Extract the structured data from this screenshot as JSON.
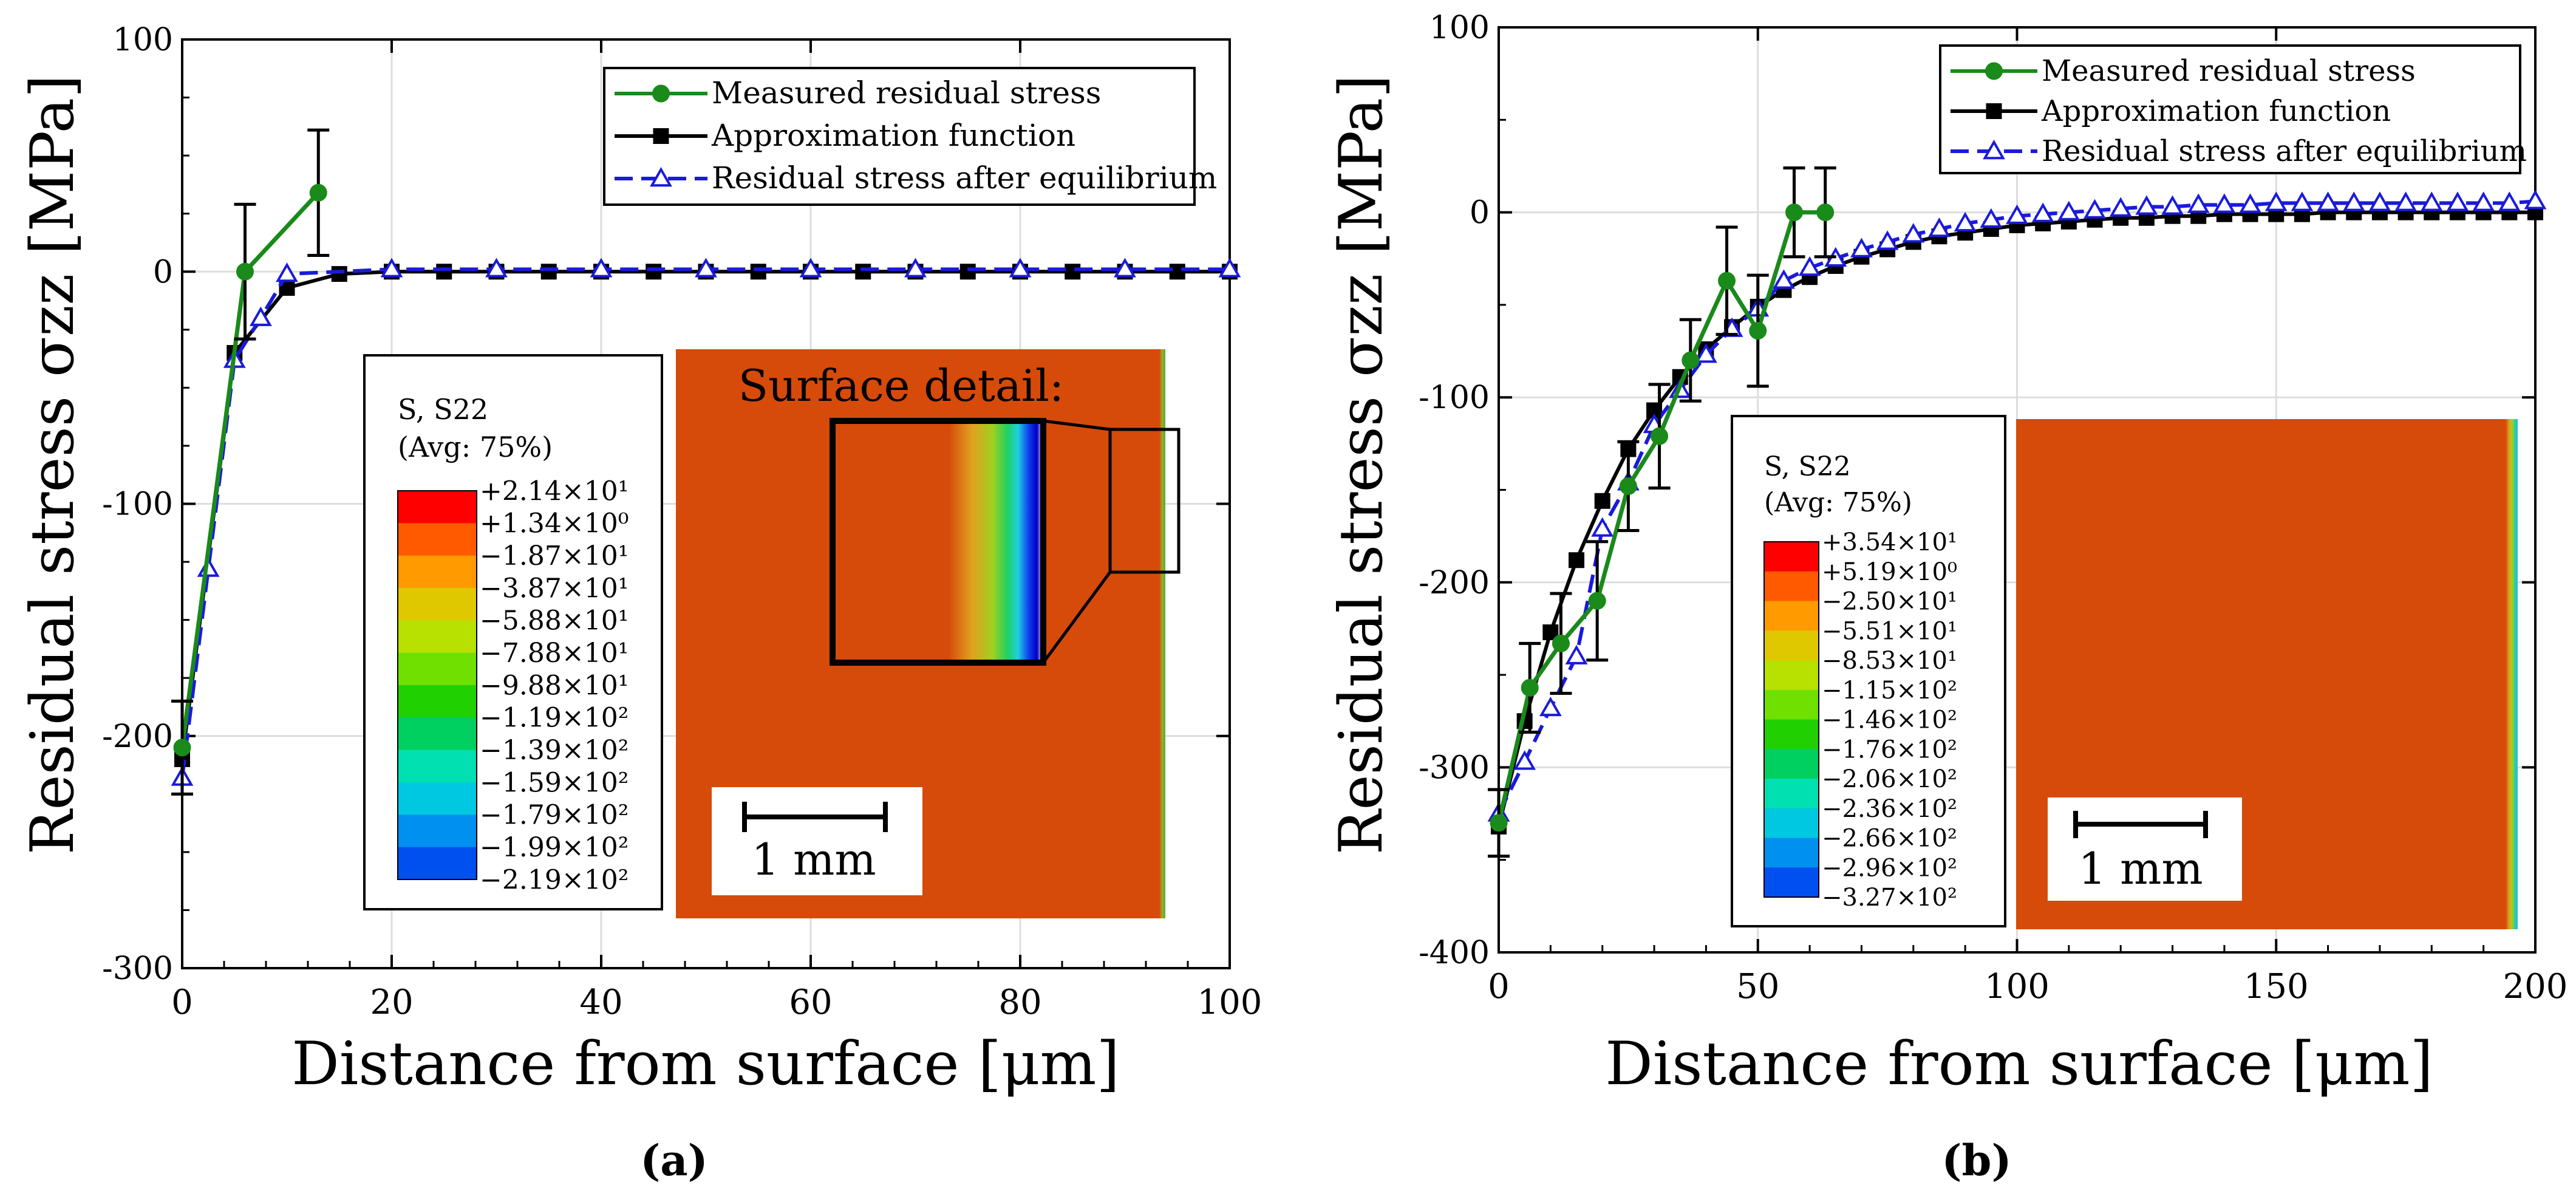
{
  "colors": {
    "measured": "#1a8a1a",
    "approximation": "#000000",
    "equilibrium": "#1a1adc",
    "contour_bg": "#d64a0a",
    "grid": "#dddddd"
  },
  "chart_data": [
    {
      "panel": "a",
      "caption": "(a)",
      "type": "line",
      "xlabel": "Distance from surface [μm]",
      "ylabel": "Residual stress σzz [MPa]",
      "xlim": [
        0,
        100
      ],
      "ylim": [
        -300,
        100
      ],
      "xticks": [
        "0",
        "20",
        "40",
        "60",
        "80",
        "100"
      ],
      "yticks": [
        "100",
        "0",
        "-100",
        "-200",
        "-300"
      ],
      "legend_position": "top-right",
      "series": [
        {
          "name": "Measured residual stress",
          "marker": "circle",
          "x": [
            0,
            6,
            13
          ],
          "y": [
            -205,
            0,
            34
          ],
          "error": [
            20,
            29,
            27
          ]
        },
        {
          "name": "Approximation function",
          "marker": "square",
          "x": [
            0,
            5,
            10,
            15,
            20,
            25,
            30,
            35,
            40,
            45,
            50,
            55,
            60,
            65,
            70,
            75,
            80,
            85,
            90,
            95,
            100
          ],
          "y": [
            -210,
            -35,
            -7,
            -1,
            0,
            0,
            0,
            0,
            0,
            0,
            0,
            0,
            0,
            0,
            0,
            0,
            0,
            0,
            0,
            0,
            0
          ]
        },
        {
          "name": "Residual stress after equilibrium",
          "marker": "triangle",
          "x": [
            0,
            2.5,
            5,
            7.5,
            10,
            20,
            30,
            40,
            50,
            60,
            70,
            80,
            90,
            100
          ],
          "y": [
            -218,
            -128,
            -38,
            -20,
            -1,
            1,
            1,
            1,
            1,
            1,
            1,
            1,
            1,
            1
          ]
        }
      ],
      "inset": {
        "colorbar_title": [
          "S, S22",
          "(Avg: 75%)"
        ],
        "colorbar_labels": [
          "+2.14×10¹",
          "+1.34×10⁰",
          "−1.87×10¹",
          "−3.87×10¹",
          "−5.88×10¹",
          "−7.88×10¹",
          "−9.88×10¹",
          "−1.19×10²",
          "−1.39×10²",
          "−1.59×10²",
          "−1.79×10²",
          "−1.99×10²",
          "−2.19×10²"
        ],
        "detail_label": "Surface detail:",
        "scale_label": "1 mm"
      }
    },
    {
      "panel": "b",
      "caption": "(b)",
      "type": "line",
      "xlabel": "Distance from surface [μm]",
      "ylabel": "Residual stress σzz [MPa]",
      "xlim": [
        0,
        200
      ],
      "ylim": [
        -400,
        100
      ],
      "xticks": [
        "0",
        "50",
        "100",
        "150",
        "200"
      ],
      "yticks": [
        "100",
        "0",
        "-100",
        "-200",
        "-300",
        "-400"
      ],
      "legend_position": "top-right",
      "series": [
        {
          "name": "Measured residual stress",
          "marker": "circle",
          "x": [
            0,
            6,
            12,
            19,
            25,
            31,
            37,
            44,
            50,
            57,
            63
          ],
          "y": [
            -330,
            -257,
            -233,
            -210,
            -148,
            -121,
            -80,
            -37,
            -64,
            0,
            0
          ],
          "error": [
            18,
            24,
            27,
            32,
            24,
            28,
            22,
            29,
            30,
            24,
            24
          ]
        },
        {
          "name": "Approximation function",
          "marker": "square",
          "x": [
            0,
            5,
            10,
            15,
            20,
            25,
            30,
            35,
            40,
            45,
            50,
            55,
            60,
            65,
            70,
            75,
            80,
            85,
            90,
            95,
            100,
            105,
            110,
            115,
            120,
            125,
            130,
            135,
            140,
            145,
            150,
            155,
            160,
            165,
            170,
            175,
            180,
            185,
            190,
            195,
            200
          ],
          "y": [
            -332,
            -275,
            -227,
            -188,
            -156,
            -128,
            -107,
            -89,
            -74,
            -62,
            -51,
            -42,
            -35,
            -29,
            -24,
            -20,
            -16,
            -13,
            -11,
            -9,
            -7,
            -6,
            -5,
            -4,
            -3,
            -3,
            -2,
            -2,
            -1,
            -1,
            -1,
            -1,
            0,
            0,
            0,
            0,
            0,
            0,
            0,
            0,
            0
          ]
        },
        {
          "name": "Residual stress after equilibrium",
          "marker": "triangle",
          "x": [
            0,
            5,
            10,
            15,
            20,
            25,
            30,
            35,
            40,
            45,
            50,
            55,
            60,
            65,
            70,
            75,
            80,
            85,
            90,
            95,
            100,
            105,
            110,
            115,
            120,
            125,
            130,
            135,
            140,
            145,
            150,
            155,
            160,
            165,
            170,
            175,
            180,
            185,
            190,
            195,
            200
          ],
          "y": [
            -325,
            -297,
            -268,
            -240,
            -171,
            -146,
            -115,
            -96,
            -77,
            -63,
            -52,
            -37,
            -30,
            -25,
            -20,
            -16,
            -12,
            -9,
            -6,
            -4,
            -2,
            -1,
            0,
            1,
            2,
            3,
            3,
            4,
            4,
            4,
            5,
            5,
            5,
            5,
            5,
            5,
            5,
            5,
            5,
            5,
            6
          ]
        }
      ],
      "inset": {
        "colorbar_title": [
          "S, S22",
          "(Avg: 75%)"
        ],
        "colorbar_labels": [
          "+3.54×10¹",
          "+5.19×10⁰",
          "−2.50×10¹",
          "−5.51×10¹",
          "−8.53×10¹",
          "−1.15×10²",
          "−1.46×10²",
          "−1.76×10²",
          "−2.06×10²",
          "−2.36×10²",
          "−2.66×10²",
          "−2.96×10²",
          "−3.27×10²"
        ],
        "scale_label": "1 mm"
      }
    }
  ]
}
